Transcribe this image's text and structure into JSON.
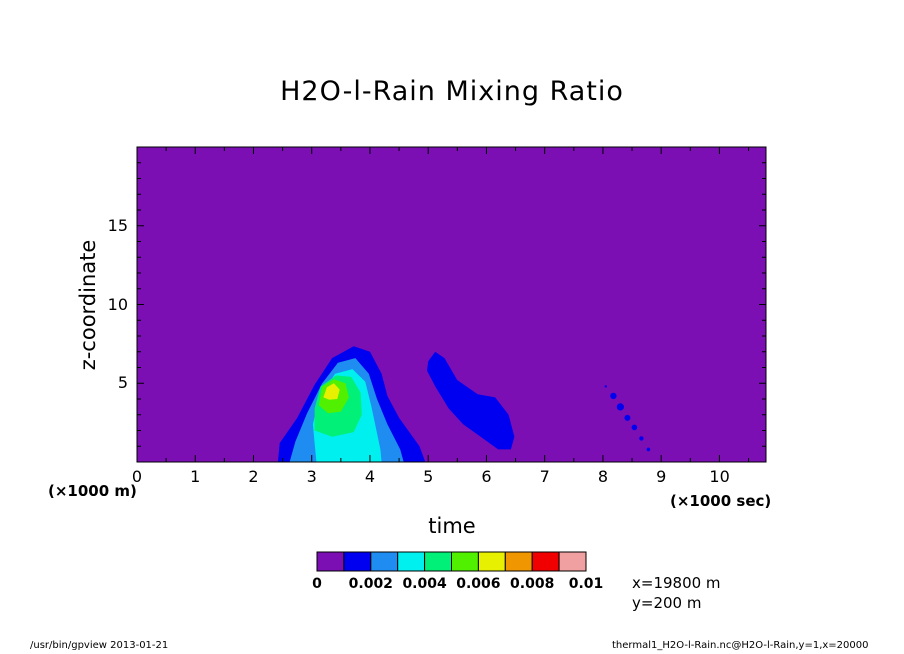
{
  "chart_data": {
    "type": "heatmap",
    "title": "H2O-l-Rain Mixing Ratio",
    "xlabel": "time",
    "ylabel": "z-coordinate",
    "x_unit_label": "(×1000 sec)",
    "y_unit_label": "(×1000 m)",
    "xlim": [
      0,
      10.8
    ],
    "ylim": [
      0,
      20
    ],
    "x_ticks": [
      "0",
      "1",
      "2",
      "3",
      "4",
      "5",
      "6",
      "7",
      "8",
      "9",
      "10"
    ],
    "y_ticks": [
      "5",
      "10",
      "15"
    ],
    "colorbar": {
      "levels": [
        0,
        0.001,
        0.002,
        0.003,
        0.004,
        0.005,
        0.006,
        0.007,
        0.008,
        0.009,
        0.01
      ],
      "tick_labels": [
        "0",
        "0.002",
        "0.004",
        "0.006",
        "0.008",
        "0.01"
      ],
      "colors": [
        "#7b0fb4",
        "#0000f0",
        "#1e8cf0",
        "#00f0f0",
        "#00f078",
        "#50f000",
        "#e6f000",
        "#f09600",
        "#f00000",
        "#f0a0a0"
      ]
    },
    "features": [
      {
        "description": "main rain cell",
        "time_range": [
          2.5,
          5.0
        ],
        "z_range": [
          0,
          7.4
        ],
        "max_level": 0.006
      },
      {
        "description": "secondary cell",
        "time_range": [
          5.0,
          6.5
        ],
        "z_range": [
          0.8,
          7.0
        ],
        "max_level": 0.002
      },
      {
        "description": "dotted trail",
        "time_range": [
          8.0,
          8.8
        ],
        "z_range": [
          0.6,
          4.8
        ],
        "max_level": 0.002
      }
    ]
  },
  "info": {
    "x_position": "x=19800 m",
    "y_position": "y=200 m"
  },
  "footer": {
    "left": "/usr/bin/gpview  2013-01-21",
    "right": "thermal1_H2O-l-Rain.nc@H2O-l-Rain,y=1,x=20000"
  }
}
